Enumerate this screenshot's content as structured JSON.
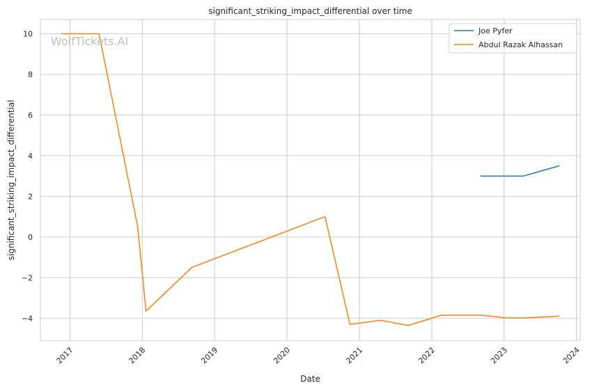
{
  "chart_data": {
    "type": "line",
    "title": "significant_striking_impact_differential over time",
    "xlabel": "Date",
    "ylabel": "significant_striking_impact_differential",
    "watermark": "WolfTickets.AI",
    "x_ticks": [
      "2017",
      "2018",
      "2019",
      "2020",
      "2021",
      "2022",
      "2023",
      "2024"
    ],
    "y_ticks": [
      "−4",
      "−2",
      "0",
      "2",
      "4",
      "6",
      "8",
      "10"
    ],
    "y_tick_values": [
      -4,
      -2,
      0,
      2,
      4,
      6,
      8,
      10
    ],
    "xlim": [
      "2016-08-05",
      "2024-01-20"
    ],
    "ylim": [
      -5.1,
      10.7
    ],
    "grid": true,
    "legend_position": "top-right",
    "series": [
      {
        "name": "Joe Pyfer",
        "color": "#1f77b4",
        "points": [
          {
            "x": "2022-09-03",
            "y": 3.0
          },
          {
            "x": "2023-04-08",
            "y": 3.0
          },
          {
            "x": "2023-10-07",
            "y": 3.5
          }
        ]
      },
      {
        "name": "Abdul Razak Alhassan",
        "color": "#ff7f0e",
        "points": [
          {
            "x": "2016-11-19",
            "y": 10.0
          },
          {
            "x": "2017-05-28",
            "y": 10.0
          },
          {
            "x": "2017-12-09",
            "y": 0.5
          },
          {
            "x": "2018-01-20",
            "y": -3.65
          },
          {
            "x": "2018-09-08",
            "y": -1.5
          },
          {
            "x": "2020-07-11",
            "y": 1.0
          },
          {
            "x": "2020-11-14",
            "y": -4.3
          },
          {
            "x": "2021-04-17",
            "y": -4.1
          },
          {
            "x": "2021-09-04",
            "y": -4.35
          },
          {
            "x": "2022-02-19",
            "y": -3.85
          },
          {
            "x": "2022-09-03",
            "y": -3.85
          },
          {
            "x": "2023-01-14",
            "y": -3.98
          },
          {
            "x": "2023-04-08",
            "y": -3.98
          },
          {
            "x": "2023-10-07",
            "y": -3.9
          }
        ]
      }
    ]
  }
}
